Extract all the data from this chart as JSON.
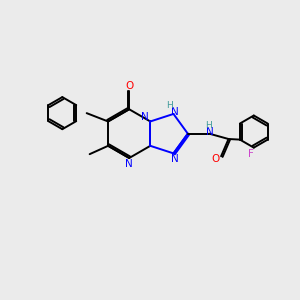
{
  "bg_color": "#ebebeb",
  "bond_color": "#000000",
  "nitrogen_color": "#0000ff",
  "oxygen_color": "#ff0000",
  "fluorine_color": "#cc44cc",
  "nh_color": "#3d9999",
  "line_width": 1.4,
  "dbo": 0.055,
  "xlim": [
    0,
    10
  ],
  "ylim": [
    0,
    10
  ]
}
